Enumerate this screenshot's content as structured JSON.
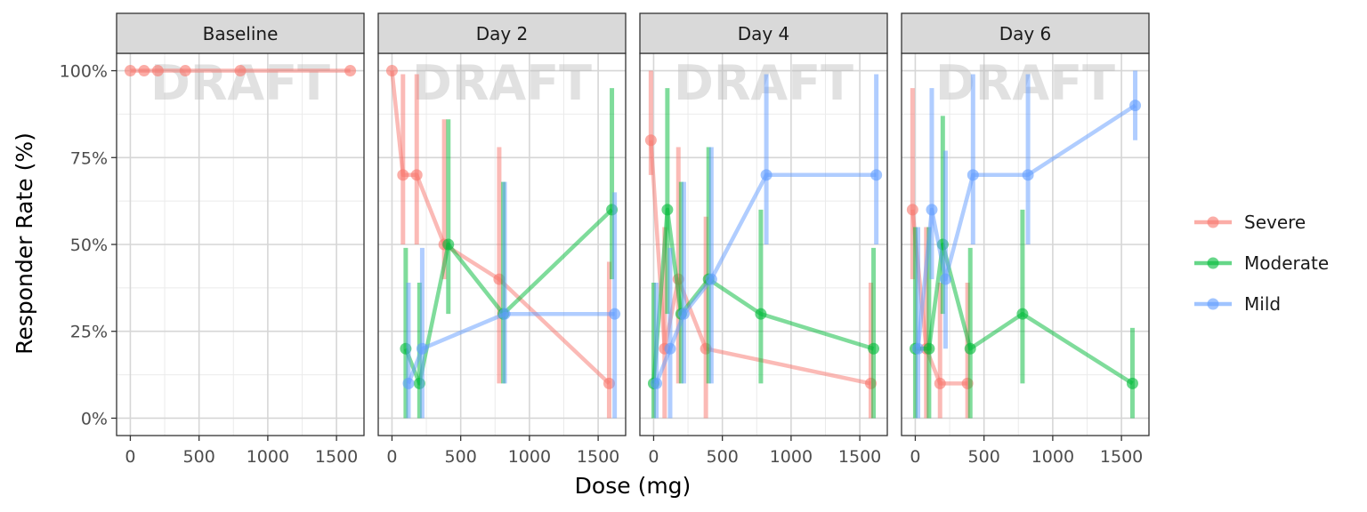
{
  "chart_data": {
    "type": "line",
    "xlabel": "Dose (mg)",
    "ylabel": "Responder Rate (%)",
    "xlim": [
      -100,
      1700
    ],
    "ylim": [
      -0.05,
      1.05
    ],
    "x_ticks": [
      0,
      500,
      1000,
      1500
    ],
    "y_ticks": [
      0,
      0.25,
      0.5,
      0.75,
      1.0
    ],
    "y_tick_labels": [
      "0%",
      "25%",
      "50%",
      "75%",
      "100%"
    ],
    "grid": true,
    "legend_position": "right",
    "watermark": "DRAFT",
    "series_styles": [
      {
        "name": "Severe",
        "color": "#F8766D"
      },
      {
        "name": "Moderate",
        "color": "#00BA38"
      },
      {
        "name": "Mild",
        "color": "#619CFF"
      }
    ],
    "panels": [
      {
        "title": "Baseline",
        "series": [
          {
            "name": "Severe",
            "points": [
              {
                "x": 0,
                "y": 1.0
              },
              {
                "x": 100,
                "y": 1.0
              },
              {
                "x": 200,
                "y": 1.0
              },
              {
                "x": 400,
                "y": 1.0
              },
              {
                "x": 800,
                "y": 1.0
              },
              {
                "x": 1600,
                "y": 1.0
              }
            ]
          }
        ]
      },
      {
        "title": "Day 2",
        "series": [
          {
            "name": "Severe",
            "points": [
              {
                "x": 0,
                "y": 1.0
              },
              {
                "x": 80,
                "y": 0.7,
                "lo": 0.5,
                "hi": 0.99
              },
              {
                "x": 180,
                "y": 0.7,
                "lo": 0.5,
                "hi": 0.99
              },
              {
                "x": 380,
                "y": 0.5,
                "lo": 0.4,
                "hi": 0.86
              },
              {
                "x": 780,
                "y": 0.4,
                "lo": 0.1,
                "hi": 0.78
              },
              {
                "x": 1580,
                "y": 0.1,
                "lo": 0.0,
                "hi": 0.45
              }
            ]
          },
          {
            "name": "Moderate",
            "points": [
              {
                "x": 100,
                "y": 0.2,
                "lo": 0.0,
                "hi": 0.49
              },
              {
                "x": 200,
                "y": 0.1,
                "lo": 0.0,
                "hi": 0.39
              },
              {
                "x": 410,
                "y": 0.5,
                "lo": 0.3,
                "hi": 0.86
              },
              {
                "x": 810,
                "y": 0.3,
                "lo": 0.1,
                "hi": 0.68
              },
              {
                "x": 1600,
                "y": 0.6,
                "lo": 0.4,
                "hi": 0.95
              }
            ]
          },
          {
            "name": "Mild",
            "points": [
              {
                "x": 120,
                "y": 0.1,
                "lo": 0.0,
                "hi": 0.39
              },
              {
                "x": 220,
                "y": 0.2,
                "lo": 0.0,
                "hi": 0.49
              },
              {
                "x": 820,
                "y": 0.3,
                "lo": 0.1,
                "hi": 0.68
              },
              {
                "x": 1620,
                "y": 0.3,
                "lo": 0.0,
                "hi": 0.65
              }
            ]
          }
        ]
      },
      {
        "title": "Day 4",
        "series": [
          {
            "name": "Severe",
            "points": [
              {
                "x": -20,
                "y": 0.8,
                "lo": 0.7,
                "hi": 1.0
              },
              {
                "x": 80,
                "y": 0.2,
                "lo": 0.0,
                "hi": 0.55
              },
              {
                "x": 180,
                "y": 0.4,
                "lo": 0.1,
                "hi": 0.78
              },
              {
                "x": 380,
                "y": 0.2,
                "lo": 0.0,
                "hi": 0.58
              },
              {
                "x": 1580,
                "y": 0.1,
                "lo": 0.0,
                "hi": 0.39
              }
            ]
          },
          {
            "name": "Moderate",
            "points": [
              {
                "x": 0,
                "y": 0.1,
                "lo": 0.0,
                "hi": 0.39
              },
              {
                "x": 100,
                "y": 0.6,
                "lo": 0.3,
                "hi": 0.95
              },
              {
                "x": 200,
                "y": 0.3,
                "lo": 0.1,
                "hi": 0.68
              },
              {
                "x": 400,
                "y": 0.4,
                "lo": 0.1,
                "hi": 0.78
              },
              {
                "x": 780,
                "y": 0.3,
                "lo": 0.1,
                "hi": 0.6
              },
              {
                "x": 1600,
                "y": 0.2,
                "lo": 0.0,
                "hi": 0.49
              }
            ]
          },
          {
            "name": "Mild",
            "points": [
              {
                "x": 20,
                "y": 0.1,
                "lo": 0.0,
                "hi": 0.39
              },
              {
                "x": 120,
                "y": 0.2,
                "lo": 0.0,
                "hi": 0.49
              },
              {
                "x": 220,
                "y": 0.3,
                "lo": 0.1,
                "hi": 0.68
              },
              {
                "x": 420,
                "y": 0.4,
                "lo": 0.1,
                "hi": 0.78
              },
              {
                "x": 820,
                "y": 0.7,
                "lo": 0.5,
                "hi": 0.99
              },
              {
                "x": 1620,
                "y": 0.7,
                "lo": 0.5,
                "hi": 0.99
              }
            ]
          }
        ]
      },
      {
        "title": "Day 6",
        "series": [
          {
            "name": "Severe",
            "points": [
              {
                "x": -20,
                "y": 0.6,
                "lo": 0.4,
                "hi": 0.95
              },
              {
                "x": 80,
                "y": 0.2,
                "lo": 0.0,
                "hi": 0.55
              },
              {
                "x": 180,
                "y": 0.1,
                "lo": 0.0,
                "hi": 0.39
              },
              {
                "x": 380,
                "y": 0.1,
                "lo": 0.0,
                "hi": 0.39
              }
            ]
          },
          {
            "name": "Moderate",
            "points": [
              {
                "x": 0,
                "y": 0.2,
                "lo": 0.0,
                "hi": 0.55
              },
              {
                "x": 100,
                "y": 0.2,
                "lo": 0.0,
                "hi": 0.55
              },
              {
                "x": 200,
                "y": 0.5,
                "lo": 0.3,
                "hi": 0.87
              },
              {
                "x": 400,
                "y": 0.2,
                "lo": 0.0,
                "hi": 0.49
              },
              {
                "x": 780,
                "y": 0.3,
                "lo": 0.1,
                "hi": 0.6
              },
              {
                "x": 1580,
                "y": 0.1,
                "lo": 0.0,
                "hi": 0.26
              }
            ]
          },
          {
            "name": "Mild",
            "points": [
              {
                "x": 20,
                "y": 0.2,
                "lo": 0.0,
                "hi": 0.55
              },
              {
                "x": 120,
                "y": 0.6,
                "lo": 0.4,
                "hi": 0.95
              },
              {
                "x": 220,
                "y": 0.4,
                "lo": 0.2,
                "hi": 0.77
              },
              {
                "x": 420,
                "y": 0.7,
                "lo": 0.5,
                "hi": 0.99
              },
              {
                "x": 820,
                "y": 0.7,
                "lo": 0.5,
                "hi": 0.99
              },
              {
                "x": 1600,
                "y": 0.9,
                "lo": 0.8,
                "hi": 1.0
              }
            ]
          }
        ]
      }
    ]
  }
}
